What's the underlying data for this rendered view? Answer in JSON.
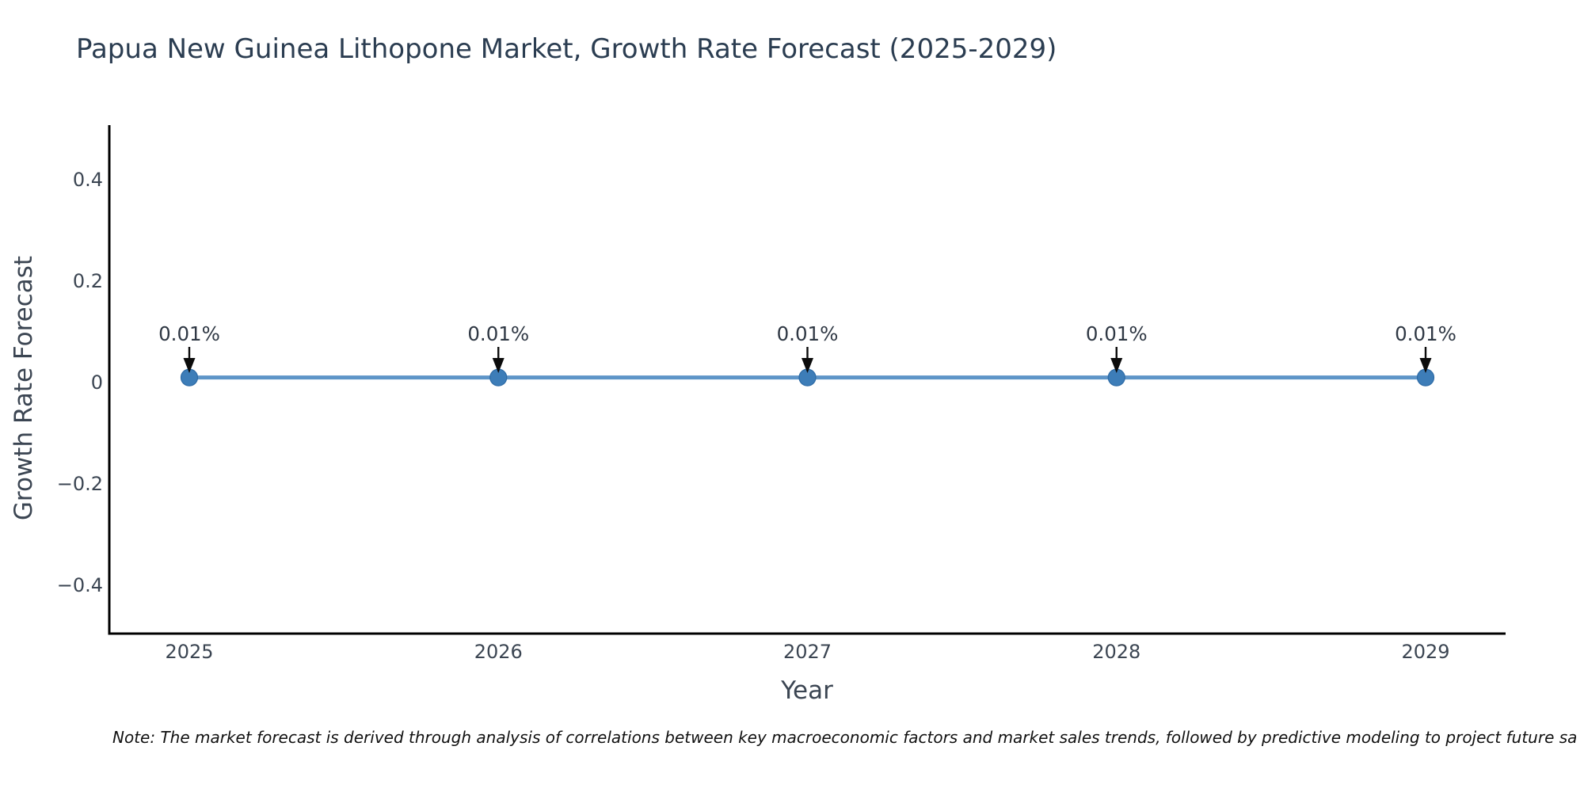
{
  "note": "Note: The market forecast is derived through analysis of correlations between key macroeconomic factors and market sales trends, followed by predictive modeling to project future sa",
  "chart_data": {
    "type": "line",
    "title": "Papua New Guinea Lithopone Market, Growth Rate Forecast (2025-2029)",
    "xlabel": "Year",
    "ylabel": "Growth Rate Forecast",
    "x": [
      2025,
      2026,
      2027,
      2028,
      2029
    ],
    "values": [
      0.01,
      0.01,
      0.01,
      0.01,
      0.01
    ],
    "point_labels": [
      "0.01%",
      "0.01%",
      "0.01%",
      "0.01%",
      "0.01%"
    ],
    "x_tick_labels": [
      "2025",
      "2026",
      "2027",
      "2028",
      "2029"
    ],
    "y_ticks": [
      0.4,
      0.2,
      0,
      -0.2,
      -0.4
    ],
    "y_tick_labels": [
      "0.4",
      "0.2",
      "0",
      "−0.2",
      "−0.4"
    ],
    "ylim": [
      -0.5,
      0.51
    ],
    "xlim": [
      2024.74,
      2029.26
    ],
    "grid": false,
    "legend": "none",
    "colors": {
      "line": "#5e95c8",
      "marker_fill": "#3d7db8",
      "marker_edge": "#2e6ba6",
      "axis": "#000000",
      "tick_label": "#3b4552",
      "title": "#2b3d51",
      "annotation_text": "#2f3844",
      "arrow": "#0b0b0b",
      "background": "#ffffff"
    }
  }
}
